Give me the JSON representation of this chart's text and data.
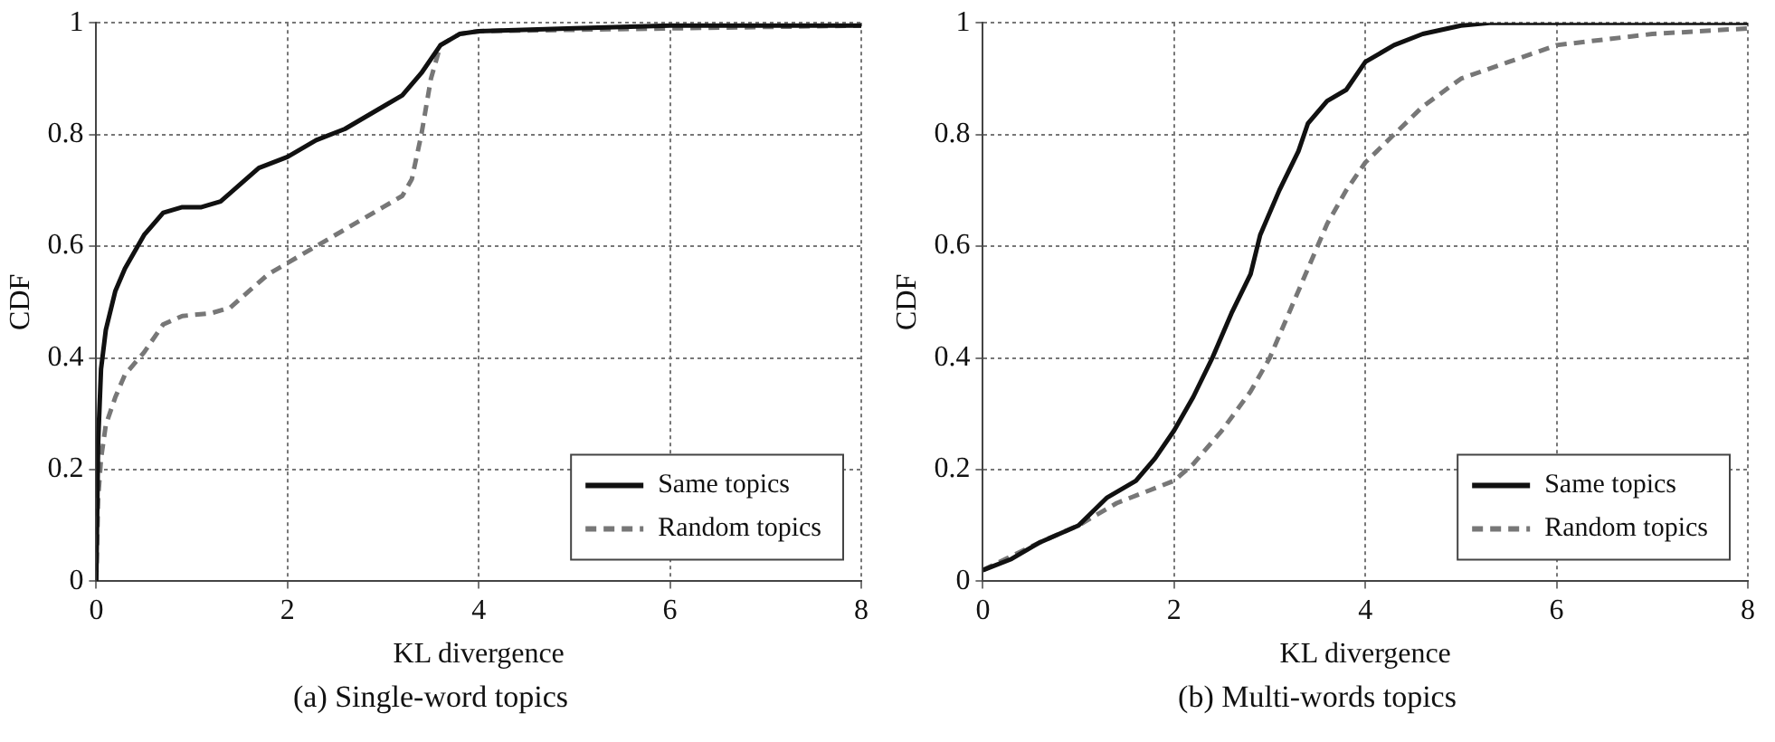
{
  "chart_data": [
    {
      "type": "line",
      "title": "(a) Single-word topics",
      "xlabel": "KL divergence",
      "ylabel": "CDF",
      "xlim": [
        0,
        8
      ],
      "xticks": [
        0,
        2,
        4,
        6,
        8
      ],
      "ylim": [
        0,
        1
      ],
      "yticks": [
        0,
        0.2,
        0.4,
        0.6,
        0.8,
        1
      ],
      "grid": true,
      "legend": "bottom right",
      "marker": "none",
      "series": [
        {
          "name": "Same topics",
          "color": "#111111",
          "line_style": "solid",
          "x": [
            0,
            0.02,
            0.05,
            0.1,
            0.2,
            0.3,
            0.5,
            0.7,
            0.9,
            1.1,
            1.3,
            1.5,
            1.7,
            2.0,
            2.3,
            2.6,
            3.0,
            3.2,
            3.4,
            3.6,
            3.8,
            4.0,
            5,
            6,
            8
          ],
          "values": [
            0,
            0.25,
            0.38,
            0.45,
            0.52,
            0.56,
            0.62,
            0.66,
            0.67,
            0.67,
            0.68,
            0.71,
            0.74,
            0.76,
            0.79,
            0.81,
            0.85,
            0.87,
            0.91,
            0.96,
            0.98,
            0.985,
            0.99,
            0.995,
            0.995
          ]
        },
        {
          "name": "Random topics",
          "color": "#777777",
          "line_style": "dashed",
          "x": [
            0,
            0.02,
            0.05,
            0.1,
            0.2,
            0.3,
            0.5,
            0.7,
            0.9,
            1.2,
            1.4,
            1.6,
            1.8,
            2.0,
            2.3,
            2.6,
            3.0,
            3.2,
            3.3,
            3.4,
            3.5,
            3.6,
            3.8,
            4,
            6,
            8
          ],
          "values": [
            0,
            0.15,
            0.22,
            0.28,
            0.33,
            0.37,
            0.41,
            0.46,
            0.475,
            0.48,
            0.49,
            0.52,
            0.55,
            0.57,
            0.6,
            0.63,
            0.67,
            0.69,
            0.72,
            0.8,
            0.9,
            0.96,
            0.98,
            0.985,
            0.99,
            0.995
          ]
        }
      ]
    },
    {
      "type": "line",
      "title": "(b) Multi-words topics",
      "xlabel": "KL divergence",
      "ylabel": "CDF",
      "xlim": [
        0,
        8
      ],
      "xticks": [
        0,
        2,
        4,
        6,
        8
      ],
      "ylim": [
        0,
        1
      ],
      "yticks": [
        0,
        0.2,
        0.4,
        0.6,
        0.8,
        1
      ],
      "grid": true,
      "legend": "bottom right",
      "marker": "none",
      "series": [
        {
          "name": "Same topics",
          "color": "#111111",
          "line_style": "solid",
          "x": [
            0,
            0.3,
            0.6,
            1.0,
            1.3,
            1.6,
            1.8,
            2.0,
            2.2,
            2.4,
            2.6,
            2.8,
            2.9,
            3.1,
            3.3,
            3.4,
            3.6,
            3.8,
            4.0,
            4.3,
            4.6,
            5.0,
            5.3,
            8
          ],
          "values": [
            0.02,
            0.04,
            0.07,
            0.1,
            0.15,
            0.18,
            0.22,
            0.27,
            0.33,
            0.4,
            0.48,
            0.55,
            0.62,
            0.7,
            0.77,
            0.82,
            0.86,
            0.88,
            0.93,
            0.96,
            0.98,
            0.995,
            1,
            1
          ]
        },
        {
          "name": "Random topics",
          "color": "#777777",
          "line_style": "dashed",
          "x": [
            0,
            0.6,
            1.0,
            1.4,
            1.7,
            2.0,
            2.2,
            2.5,
            2.8,
            3.0,
            3.2,
            3.4,
            3.6,
            3.8,
            4.0,
            4.3,
            4.6,
            5.0,
            5.5,
            6.0,
            7,
            8
          ],
          "values": [
            0.02,
            0.07,
            0.1,
            0.14,
            0.16,
            0.18,
            0.21,
            0.27,
            0.34,
            0.4,
            0.48,
            0.56,
            0.64,
            0.7,
            0.75,
            0.8,
            0.85,
            0.9,
            0.93,
            0.96,
            0.98,
            0.99
          ]
        }
      ]
    }
  ]
}
